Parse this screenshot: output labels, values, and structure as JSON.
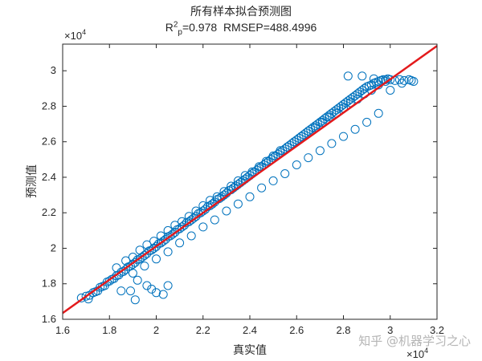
{
  "chart_data": {
    "type": "scatter",
    "title": "所有样本拟合预测图",
    "subtitle": {
      "r_symbol": "R",
      "r_sup": "2",
      "r_sub": "p",
      "r_value": "=0.978",
      "rmsep": "RMSEP=488.4996"
    },
    "xlabel": "真实值",
    "ylabel": "预测值",
    "x_exponent_label": "×10",
    "x_exponent_power": "4",
    "y_exponent_label": "×10",
    "y_exponent_power": "4",
    "xlim": [
      16000,
      32000
    ],
    "ylim": [
      16000,
      31500
    ],
    "x_ticks": [
      16000,
      18000,
      20000,
      22000,
      24000,
      26000,
      28000,
      30000,
      32000
    ],
    "x_tick_labels": [
      "1.6",
      "1.8",
      "2",
      "2.2",
      "2.4",
      "2.6",
      "2.8",
      "3",
      "3.2"
    ],
    "y_ticks": [
      16000,
      18000,
      20000,
      22000,
      24000,
      26000,
      28000,
      30000
    ],
    "y_tick_labels": [
      "1.6",
      "1.8",
      "2",
      "2.2",
      "2.4",
      "2.6",
      "2.8",
      "3"
    ],
    "grid": false,
    "marker": "open-circle",
    "colors": {
      "points": "#0072BD",
      "fit_line": "#E31A1C",
      "axes": "#262626"
    },
    "fit_line": {
      "x": [
        16000,
        32000
      ],
      "y": [
        16350,
        31400
      ]
    },
    "series": [
      {
        "x": [
          16800,
          17000,
          17100,
          17150,
          17300,
          17400,
          17500,
          17600,
          17700,
          17800,
          17900,
          18000,
          18100,
          18200,
          18300,
          18400,
          18500,
          18600,
          18700,
          18800,
          18900,
          19000,
          19100,
          19200,
          19300,
          19400,
          19500,
          19600,
          19700,
          19800,
          19900,
          20000,
          20100,
          20200,
          20300,
          20400,
          20500,
          20600,
          20700,
          20800,
          20900,
          21000,
          21100,
          21200,
          21300,
          21400,
          21500,
          21600,
          21700,
          21800,
          21900,
          22000,
          22100,
          22200,
          22300,
          22400,
          22500,
          22600,
          22700,
          22800,
          22900,
          23000,
          23100,
          23200,
          23300,
          23400,
          23500,
          23600,
          23700,
          23800,
          23900,
          24000,
          24100,
          24200,
          24300,
          24400,
          24500,
          24600,
          24700,
          24800,
          24900,
          25000,
          25100,
          25200,
          25300,
          25400,
          25500,
          25600,
          25700,
          25800,
          25900,
          26000,
          26100,
          26200,
          26300,
          26400,
          26500,
          26600,
          26700,
          26800,
          26900,
          27000,
          27100,
          27200,
          27300,
          27400,
          27500,
          27600,
          27700,
          27800,
          27900,
          28000,
          28100,
          28200,
          28300,
          28400,
          28500,
          28600,
          28700,
          28800,
          28900,
          29000,
          29100,
          29200,
          29300,
          29400,
          29500,
          29600,
          29700,
          29800,
          29900,
          30000,
          30200,
          30400,
          30600,
          30800,
          30900,
          31000,
          18300,
          18700,
          19000,
          19300,
          19600,
          19900,
          20200,
          20500,
          20800,
          21100,
          21400,
          21700,
          22000,
          22300,
          22600,
          22900,
          23200,
          23500,
          23800,
          24100,
          24400,
          24700,
          25000,
          25300,
          25600,
          25900,
          26200,
          26500,
          26800,
          27100,
          27400,
          27700,
          28000,
          28300,
          28600,
          28900,
          29200,
          29500,
          29800,
          19000,
          19500,
          20000,
          20500,
          21000,
          21500,
          22000,
          22500,
          23000,
          23500,
          24000,
          24500,
          25000,
          25500,
          26000,
          26500,
          27000,
          27500,
          28000,
          28500,
          29000,
          29500,
          18500,
          19200,
          19600,
          19800,
          20000,
          20300,
          20500,
          19100,
          18900,
          28200,
          28800,
          29300,
          30000,
          30500
        ],
        "y": [
          17200,
          17300,
          17150,
          17350,
          17500,
          17550,
          17600,
          17800,
          17850,
          17900,
          18100,
          18150,
          18250,
          18300,
          18450,
          18500,
          18650,
          18700,
          18800,
          18950,
          19000,
          19100,
          19200,
          19350,
          19400,
          19500,
          19600,
          19700,
          19850,
          19900,
          20000,
          20100,
          20250,
          20300,
          20400,
          20500,
          20650,
          20700,
          20800,
          20900,
          21050,
          21100,
          21200,
          21300,
          21450,
          21500,
          21600,
          21700,
          21800,
          21950,
          22000,
          22100,
          22200,
          22350,
          22400,
          22500,
          22600,
          22750,
          22800,
          22900,
          23000,
          23100,
          23250,
          23300,
          23400,
          23500,
          23600,
          23700,
          23800,
          23900,
          24000,
          24100,
          24200,
          24300,
          24400,
          24500,
          24600,
          24700,
          24800,
          24900,
          25000,
          25100,
          25200,
          25300,
          25400,
          25500,
          25600,
          25700,
          25800,
          25900,
          26000,
          26100,
          26200,
          26300,
          26400,
          26500,
          26600,
          26700,
          26800,
          26900,
          27000,
          27100,
          27200,
          27300,
          27400,
          27500,
          27600,
          27700,
          27800,
          27900,
          28000,
          28100,
          28200,
          28300,
          28400,
          28500,
          28600,
          28700,
          28800,
          28900,
          29000,
          29100,
          29150,
          29200,
          29300,
          29350,
          29400,
          29450,
          29500,
          29500,
          29550,
          29500,
          29450,
          29500,
          29450,
          29500,
          29450,
          29400,
          18900,
          19300,
          19500,
          19900,
          20200,
          20400,
          20700,
          21000,
          21300,
          21500,
          21800,
          22100,
          22400,
          22700,
          22900,
          23200,
          23500,
          23800,
          24100,
          24300,
          24600,
          24900,
          25200,
          25500,
          25700,
          26000,
          26300,
          26600,
          26800,
          27100,
          27400,
          27600,
          27900,
          28200,
          28400,
          28700,
          28900,
          29200,
          29400,
          18600,
          19000,
          19400,
          19800,
          20300,
          20700,
          21200,
          21600,
          22100,
          22500,
          22900,
          23400,
          23800,
          24200,
          24700,
          25100,
          25500,
          25900,
          26300,
          26700,
          27100,
          27600,
          17600,
          18200,
          17900,
          17700,
          17500,
          17400,
          17900,
          17100,
          17600,
          29700,
          29700,
          29550,
          28900,
          29300
        ]
      }
    ]
  },
  "watermark": "知乎 @机器学习之心"
}
